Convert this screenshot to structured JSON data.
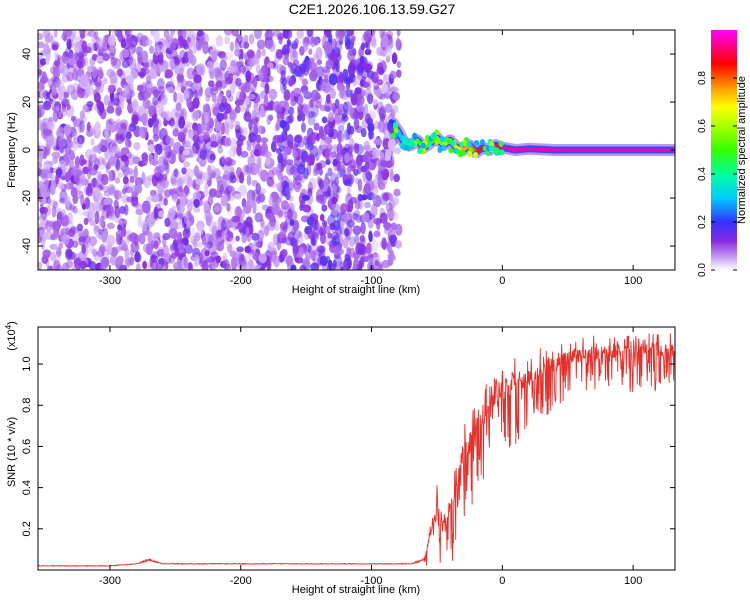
{
  "title": "C2E1.2026.106.13.59.G27",
  "chart_data": [
    {
      "type": "heatmap",
      "xlabel": "Height of straight line (km)",
      "ylabel": "Frequency (Hz)",
      "xlim": [
        -355,
        132
      ],
      "ylim": [
        -50,
        50
      ],
      "x_ticks": [
        -300,
        -200,
        -100,
        0,
        100
      ],
      "x_tick_labels": [
        "-300",
        "-200",
        "-100",
        "0",
        "100"
      ],
      "y_ticks": [
        -40,
        -20,
        0,
        20,
        40
      ],
      "y_tick_labels": [
        "-40",
        "-20",
        "0",
        "20",
        "40"
      ],
      "colorbar": {
        "label": "Normalized spectral amplitude",
        "range": [
          0.0,
          1.0
        ],
        "ticks": [
          0.0,
          0.2,
          0.4,
          0.6,
          0.8
        ],
        "tick_labels": [
          "0.0",
          "0.2",
          "0.4",
          "0.6",
          "0.8"
        ],
        "colormap": [
          "#ffffff",
          "#8a2be2",
          "#3333ff",
          "#00ccff",
          "#00ff66",
          "#aaff00",
          "#ffff00",
          "#ff8800",
          "#ff0000",
          "#ff00ff"
        ]
      },
      "noise_region_x": [
        -355,
        -85
      ],
      "signal_line": {
        "x": [
          -85,
          -80,
          -75,
          -70,
          -65,
          -60,
          -55,
          -50,
          -45,
          -40,
          -35,
          -30,
          -25,
          -20,
          -15,
          -10,
          -5,
          0,
          10,
          20,
          40,
          60,
          80,
          100,
          132
        ],
        "freq": [
          12,
          8,
          3,
          2,
          4,
          1,
          3,
          5,
          2,
          4,
          1,
          0,
          2,
          -1,
          1,
          0,
          2,
          1,
          0,
          0.5,
          0,
          0,
          0,
          0,
          0
        ],
        "amplitude": [
          0.2,
          0.3,
          0.4,
          0.45,
          0.45,
          0.5,
          0.5,
          0.55,
          0.6,
          0.6,
          0.7,
          0.75,
          0.8,
          0.85,
          0.85,
          0.9,
          0.9,
          0.95,
          0.95,
          0.95,
          0.95,
          0.95,
          0.95,
          0.95,
          0.95
        ]
      }
    },
    {
      "type": "line",
      "xlabel": "Height of straight line (km)",
      "ylabel": "SNR (10 * v/v)",
      "y_scale_label": "(x10",
      "y_scale_exp": "4",
      "xlim": [
        -355,
        132
      ],
      "ylim": [
        0,
        1.18
      ],
      "x_ticks": [
        -300,
        -200,
        -100,
        0,
        100
      ],
      "x_tick_labels": [
        "-300",
        "-200",
        "-100",
        "0",
        "100"
      ],
      "y_ticks": [
        0.2,
        0.4,
        0.6,
        0.8,
        1.0
      ],
      "y_tick_labels": [
        "0.2",
        "0.4",
        "0.6",
        "0.8",
        "1.0"
      ],
      "series": [
        {
          "name": "SNR",
          "color": "#e8302b",
          "x": [
            -355,
            -300,
            -280,
            -270,
            -260,
            -200,
            -150,
            -100,
            -70,
            -60,
            -55,
            -50,
            -45,
            -40,
            -35,
            -30,
            -25,
            -20,
            -15,
            -10,
            -5,
            0,
            5,
            10,
            20,
            30,
            40,
            50,
            60,
            70,
            80,
            90,
            100,
            110,
            120,
            132
          ],
          "y": [
            0.02,
            0.02,
            0.03,
            0.05,
            0.03,
            0.03,
            0.03,
            0.03,
            0.03,
            0.05,
            0.18,
            0.3,
            0.2,
            0.3,
            0.45,
            0.55,
            0.62,
            0.7,
            0.75,
            0.78,
            0.82,
            0.86,
            0.88,
            0.9,
            0.93,
            0.97,
            1.0,
            1.03,
            1.05,
            1.05,
            1.06,
            1.06,
            1.06,
            1.07,
            1.06,
            1.06
          ],
          "spread": [
            0.01,
            0.01,
            0.01,
            0.03,
            0.01,
            0.01,
            0.01,
            0.01,
            0.01,
            0.04,
            0.15,
            0.3,
            0.15,
            0.3,
            0.35,
            0.35,
            0.35,
            0.3,
            0.35,
            0.3,
            0.28,
            0.3,
            0.3,
            0.3,
            0.25,
            0.25,
            0.22,
            0.2,
            0.2,
            0.2,
            0.18,
            0.18,
            0.2,
            0.18,
            0.2,
            0.2
          ]
        }
      ]
    }
  ]
}
